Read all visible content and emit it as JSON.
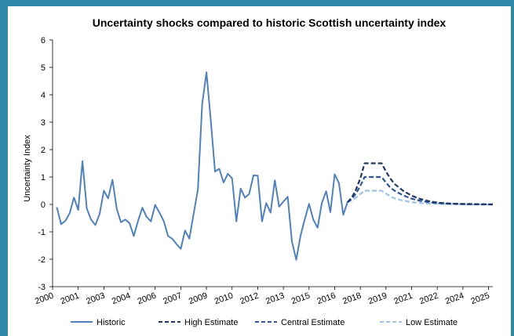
{
  "chart_data": {
    "type": "line",
    "title": "Uncertainty shocks compared to historic Scottish uncertainty index",
    "ylabel": "Uncertainty Index",
    "xlabel": "",
    "ylim": [
      -3,
      6
    ],
    "yticks": [
      -3,
      -2,
      -1,
      0,
      1,
      2,
      3,
      4,
      5,
      6
    ],
    "x_range": [
      2000,
      2025.75
    ],
    "xtick_labels": [
      "2000",
      "2001",
      "2003",
      "2004",
      "2006",
      "2007",
      "2009",
      "2010",
      "2012",
      "2013",
      "2015",
      "2016",
      "2018",
      "2019",
      "2021",
      "2022",
      "2024",
      "2025"
    ],
    "xtick_positions": [
      2000,
      2001.5,
      2003,
      2004.5,
      2006,
      2007.5,
      2009,
      2010.5,
      2012,
      2013.5,
      2015,
      2016.5,
      2018,
      2019.5,
      2021,
      2022.5,
      2024,
      2025.5
    ],
    "grid": false,
    "legend_position": "bottom",
    "series": [
      {
        "name": "Historic",
        "style": "solid",
        "color": "#4f81bd",
        "x": [
          2000.25,
          2000.5,
          2000.75,
          2001.0,
          2001.25,
          2001.5,
          2001.75,
          2002.0,
          2002.25,
          2002.5,
          2002.75,
          2003.0,
          2003.25,
          2003.5,
          2003.75,
          2004.0,
          2004.25,
          2004.5,
          2004.75,
          2005.0,
          2005.25,
          2005.5,
          2005.75,
          2006.0,
          2006.25,
          2006.5,
          2006.75,
          2007.0,
          2007.25,
          2007.5,
          2007.75,
          2008.0,
          2008.25,
          2008.5,
          2008.75,
          2009.0,
          2009.25,
          2009.5,
          2009.75,
          2010.0,
          2010.25,
          2010.5,
          2010.75,
          2011.0,
          2011.25,
          2011.5,
          2011.75,
          2012.0,
          2012.25,
          2012.5,
          2012.75,
          2013.0,
          2013.25,
          2013.5,
          2013.75,
          2014.0,
          2014.25,
          2014.5,
          2014.75,
          2015.0,
          2015.25,
          2015.5,
          2015.75,
          2016.0,
          2016.25,
          2016.5,
          2016.75,
          2017.0,
          2017.25
        ],
        "values": [
          -0.1,
          -0.72,
          -0.6,
          -0.32,
          0.25,
          -0.2,
          1.58,
          -0.15,
          -0.55,
          -0.75,
          -0.35,
          0.5,
          0.22,
          0.9,
          -0.15,
          -0.65,
          -0.55,
          -0.68,
          -1.15,
          -0.6,
          -0.12,
          -0.45,
          -0.62,
          -0.02,
          -0.3,
          -0.6,
          -1.15,
          -1.25,
          -1.45,
          -1.62,
          -0.95,
          -1.25,
          -0.35,
          0.55,
          3.65,
          4.82,
          3.1,
          1.2,
          1.3,
          0.8,
          1.12,
          0.95,
          -0.62,
          0.58,
          0.25,
          0.38,
          1.06,
          1.05,
          -0.62,
          0.05,
          -0.3,
          0.88,
          -0.08,
          0.1,
          0.28,
          -1.35,
          -2.02,
          -1.15,
          -0.55,
          0.02,
          -0.55,
          -0.85,
          0.05,
          0.48,
          -0.28,
          1.1,
          0.78,
          -0.38,
          0.08
        ]
      },
      {
        "name": "High Estimate",
        "style": "dash",
        "color": "#1f3864",
        "x": [
          2017.25,
          2017.5,
          2017.75,
          2018.0,
          2018.25,
          2018.5,
          2018.75,
          2019.0,
          2019.25,
          2019.5,
          2019.75,
          2020.0,
          2020.5,
          2021.0,
          2021.5,
          2022.0,
          2022.5,
          2023.0,
          2024.0,
          2025.0,
          2025.75
        ],
        "values": [
          0.08,
          0.25,
          0.55,
          0.95,
          1.5,
          1.5,
          1.5,
          1.5,
          1.5,
          1.2,
          0.95,
          0.75,
          0.5,
          0.32,
          0.2,
          0.12,
          0.07,
          0.04,
          0.02,
          0.01,
          0.0
        ]
      },
      {
        "name": "Central Estimate",
        "style": "dash",
        "color": "#2f5597",
        "x": [
          2017.25,
          2017.5,
          2017.75,
          2018.0,
          2018.25,
          2018.5,
          2018.75,
          2019.0,
          2019.25,
          2019.5,
          2019.75,
          2020.0,
          2020.5,
          2021.0,
          2021.5,
          2022.0,
          2022.5,
          2023.0,
          2024.0,
          2025.0,
          2025.75
        ],
        "values": [
          0.08,
          0.2,
          0.4,
          0.68,
          1.0,
          1.0,
          1.0,
          1.0,
          1.0,
          0.8,
          0.62,
          0.5,
          0.33,
          0.21,
          0.13,
          0.08,
          0.05,
          0.03,
          0.01,
          0.0,
          0.0
        ]
      },
      {
        "name": "Low Estimate",
        "style": "dash",
        "color": "#9dc3e6",
        "x": [
          2017.25,
          2017.5,
          2017.75,
          2018.0,
          2018.25,
          2018.5,
          2018.75,
          2019.0,
          2019.25,
          2019.5,
          2019.75,
          2020.0,
          2020.5,
          2021.0,
          2021.5,
          2022.0,
          2022.5,
          2023.0,
          2024.0,
          2025.0,
          2025.75
        ],
        "values": [
          0.08,
          0.15,
          0.25,
          0.38,
          0.5,
          0.5,
          0.5,
          0.5,
          0.5,
          0.4,
          0.3,
          0.22,
          0.14,
          0.08,
          0.05,
          0.03,
          0.02,
          0.01,
          0.0,
          0.0,
          0.0
        ]
      }
    ]
  }
}
